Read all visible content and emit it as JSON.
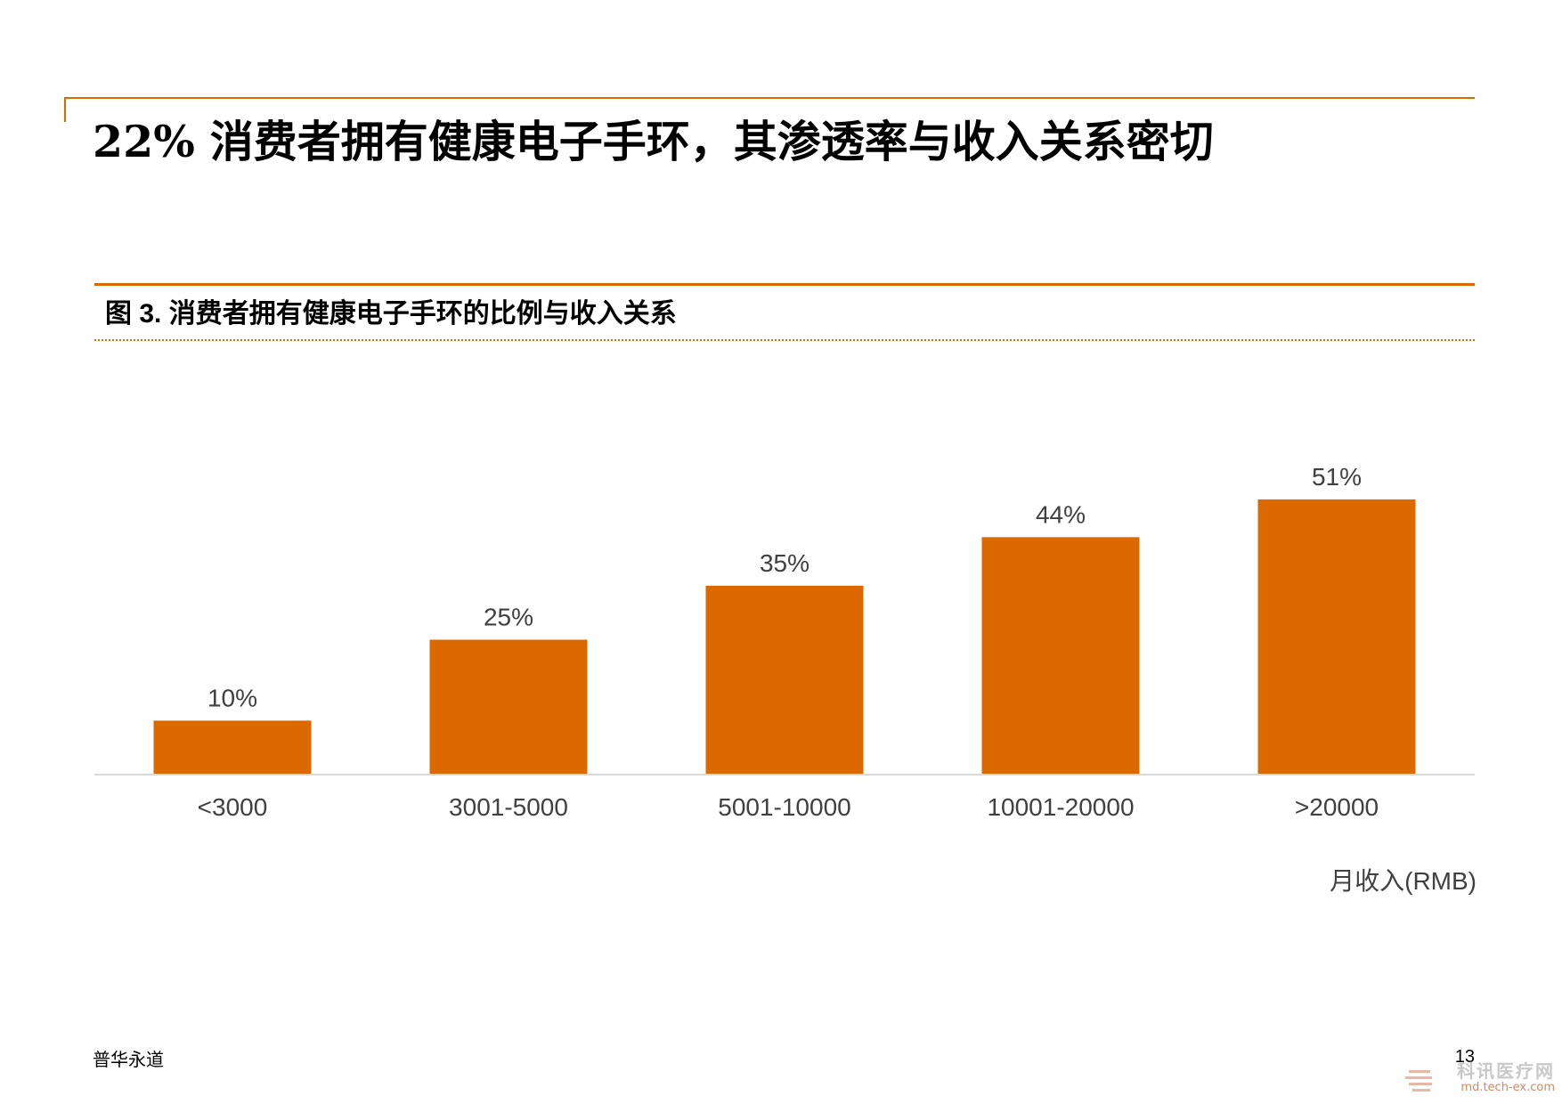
{
  "slide": {
    "title": "22% 消费者拥有健康电子手环，其渗透率与收入关系密切",
    "footer_left": "普华永道",
    "page_number": "13"
  },
  "figure": {
    "title": "图 3. 消费者拥有健康电子手环的比例与收入关系"
  },
  "watermark": {
    "name": "科讯医疗网",
    "url": "md.tech-ex.com"
  },
  "colors": {
    "accent": "#dc6900",
    "bar": "#dc6900",
    "axis_line": "#d9d9d9",
    "label_text": "#404040"
  },
  "chart_data": {
    "type": "bar",
    "categories": [
      "<3000",
      "3001-5000",
      "5001-10000",
      "10001-20000",
      ">20000"
    ],
    "values": [
      10,
      25,
      35,
      44,
      51
    ],
    "data_labels": [
      "10%",
      "25%",
      "35%",
      "44%",
      "51%"
    ],
    "title": "图 3. 消费者拥有健康电子手环的比例与收入关系",
    "xlabel": "月收入(RMB)",
    "ylabel": "",
    "ylim": [
      0,
      55
    ],
    "grid": false,
    "legend": "none"
  }
}
